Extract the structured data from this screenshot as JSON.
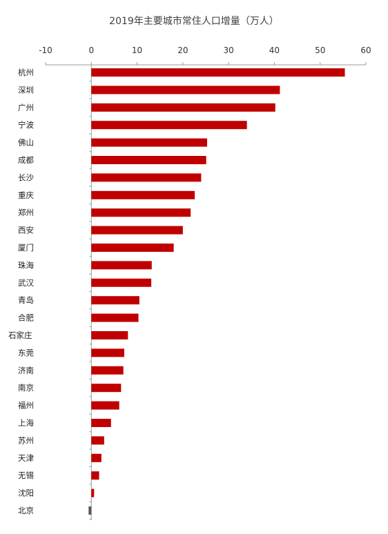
{
  "chart_data": {
    "type": "bar",
    "orientation": "horizontal",
    "title": "2019年主要城市常住人口增量（万人）",
    "xlabel": "",
    "ylabel": "",
    "xlim": [
      -10,
      60
    ],
    "x_ticks": [
      -10,
      0,
      10,
      20,
      30,
      40,
      50,
      60
    ],
    "x_tick_labels": [
      "-10",
      "0",
      "10",
      "20",
      "30",
      "40",
      "50",
      "60"
    ],
    "axis_position": "top",
    "grid": false,
    "legend": false,
    "bar_color": "#C00000",
    "categories": [
      "杭州",
      "深圳",
      "广州",
      "宁波",
      "佛山",
      "成都",
      "长沙",
      "重庆",
      "郑州",
      "西安",
      "厦门",
      "珠海",
      "武汉",
      "青岛",
      "合肥",
      "石家庄",
      "东莞",
      "济南",
      "南京",
      "福州",
      "上海",
      "苏州",
      "天津",
      "无锡",
      "沈阳",
      "北京"
    ],
    "values": [
      55.4,
      41.2,
      40.2,
      34.0,
      25.3,
      25.1,
      24.0,
      22.6,
      21.7,
      20.0,
      18.0,
      13.2,
      13.1,
      10.5,
      10.3,
      8.0,
      7.2,
      7.0,
      6.5,
      6.1,
      4.3,
      2.8,
      2.2,
      1.7,
      0.6,
      -0.6
    ]
  }
}
